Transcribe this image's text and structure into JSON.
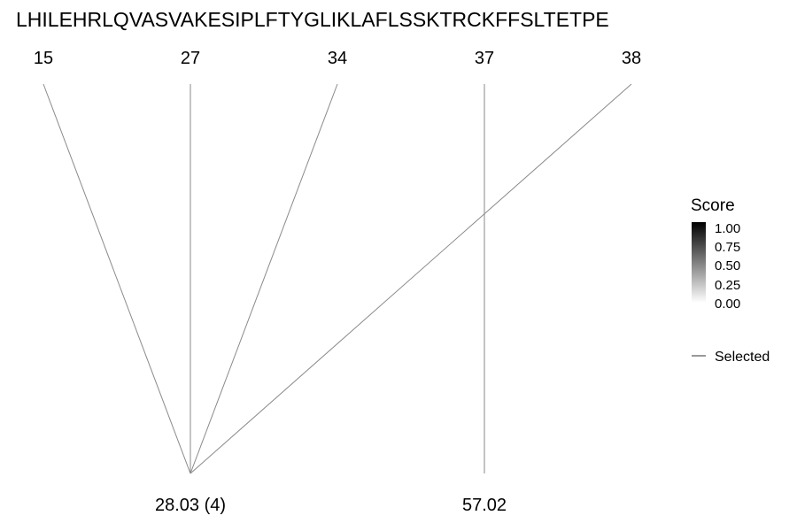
{
  "sequence": "LHILEHRLQVASVAKESIPLFTYGLIKLAFLSSKTRCKFFSLTETPE",
  "positions": [
    "15",
    "27",
    "34",
    "37",
    "38"
  ],
  "masses": [
    "28.03 (4)",
    "57.02"
  ],
  "links": [
    {
      "position": "15",
      "mass": "28.03 (4)"
    },
    {
      "position": "27",
      "mass": "28.03 (4)"
    },
    {
      "position": "34",
      "mass": "28.03 (4)"
    },
    {
      "position": "38",
      "mass": "28.03 (4)"
    },
    {
      "position": "37",
      "mass": "57.02"
    }
  ],
  "legend": {
    "score_title": "Score",
    "score_ticks": [
      "1.00",
      "0.75",
      "0.50",
      "0.25",
      "0.00"
    ],
    "score_range": [
      0,
      1
    ],
    "selected_label": "Selected"
  },
  "colors": {
    "line": "#8a8a8a",
    "gradient_high": "#000000",
    "gradient_low": "#ffffff"
  }
}
